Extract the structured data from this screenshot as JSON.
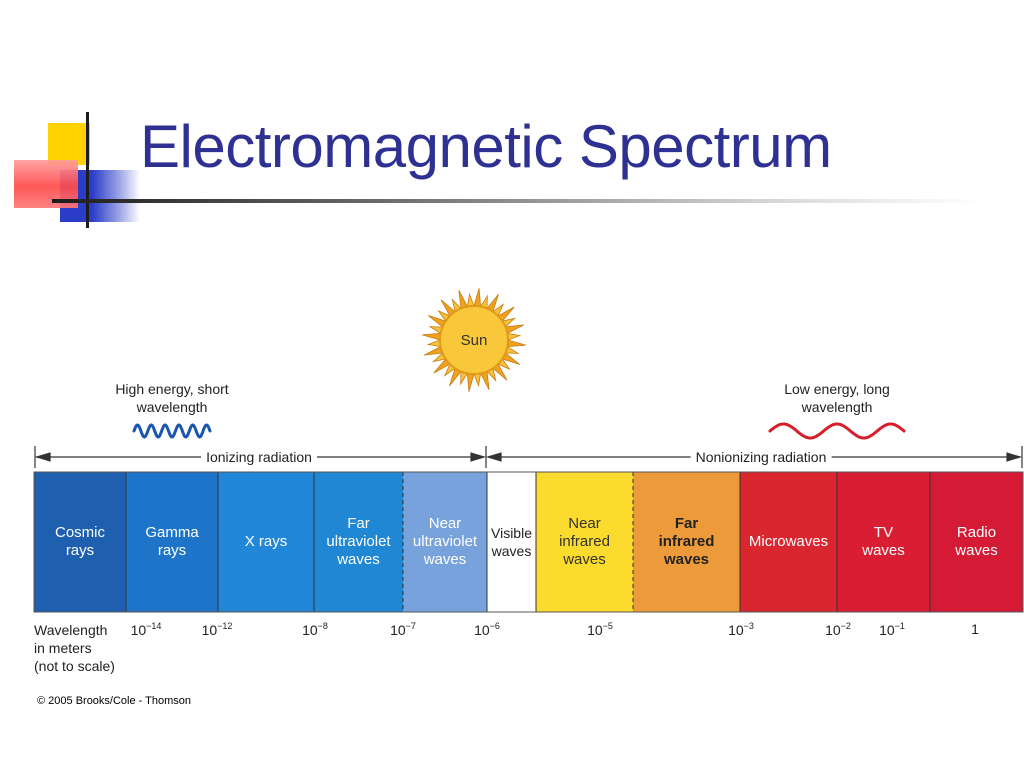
{
  "slide": {
    "title": "Electromagnetic Spectrum"
  },
  "colors": {
    "title": "#2e3192",
    "accent_yellow": "#ffd200",
    "accent_blue": "#2b3cc8",
    "accent_red": "#ff4a4a",
    "short_wave": "#1a56b0",
    "long_wave": "#d81e2c"
  },
  "sun": {
    "label": "Sun"
  },
  "energy": {
    "high": "High energy, short\nwavelength",
    "low": "Low energy, long\nwavelength"
  },
  "radiation": {
    "ionizing": "Ionizing radiation",
    "nonionizing": "Nonionizing radiation"
  },
  "bands": [
    {
      "label": "Cosmic\nrays",
      "color": "#1e5fb0",
      "text_color": "#ffffff"
    },
    {
      "label": "Gamma\nrays",
      "color": "#1e74c8",
      "text_color": "#ffffff"
    },
    {
      "label": "X rays",
      "color": "#2287d8",
      "text_color": "#ffffff"
    },
    {
      "label": "Far\nultraviolet\nwaves",
      "color": "#1f87d4",
      "text_color": "#ffffff"
    },
    {
      "label": "Near\nultraviolet\nwaves",
      "color": "#77a2dc",
      "text_color": "#ffffff"
    },
    {
      "label": "Visible\nwaves",
      "color": "#ffffff",
      "text_color": "#222222"
    },
    {
      "label": "Near\ninfrared\nwaves",
      "color": "#fadb2e",
      "text_color": "#333333"
    },
    {
      "label": "Far\ninfrared\nwaves",
      "color": "#ec9a3a",
      "text_color": "#222222"
    },
    {
      "label": "Microwaves",
      "color": "#d9262f",
      "text_color": "#ffffff"
    },
    {
      "label": "TV\nwaves",
      "color": "#d91e33",
      "text_color": "#ffffff"
    },
    {
      "label": "Radio\nwaves",
      "color": "#d41a35",
      "text_color": "#ffffff"
    }
  ],
  "wavelength_caption": "Wavelength\nin meters\n(not to scale)",
  "wavelength_ticks": [
    {
      "base": "10",
      "exp": "−14"
    },
    {
      "base": "10",
      "exp": "−12"
    },
    {
      "base": "10",
      "exp": "−8"
    },
    {
      "base": "10",
      "exp": "−7"
    },
    {
      "base": "10",
      "exp": "−6"
    },
    {
      "base": "10",
      "exp": "−5"
    },
    {
      "base": "10",
      "exp": "−3"
    },
    {
      "base": "10",
      "exp": "−2"
    },
    {
      "base": "10",
      "exp": "−1"
    },
    {
      "base": "1",
      "exp": ""
    }
  ],
  "copyright": "© 2005 Brooks/Cole - Thomson"
}
